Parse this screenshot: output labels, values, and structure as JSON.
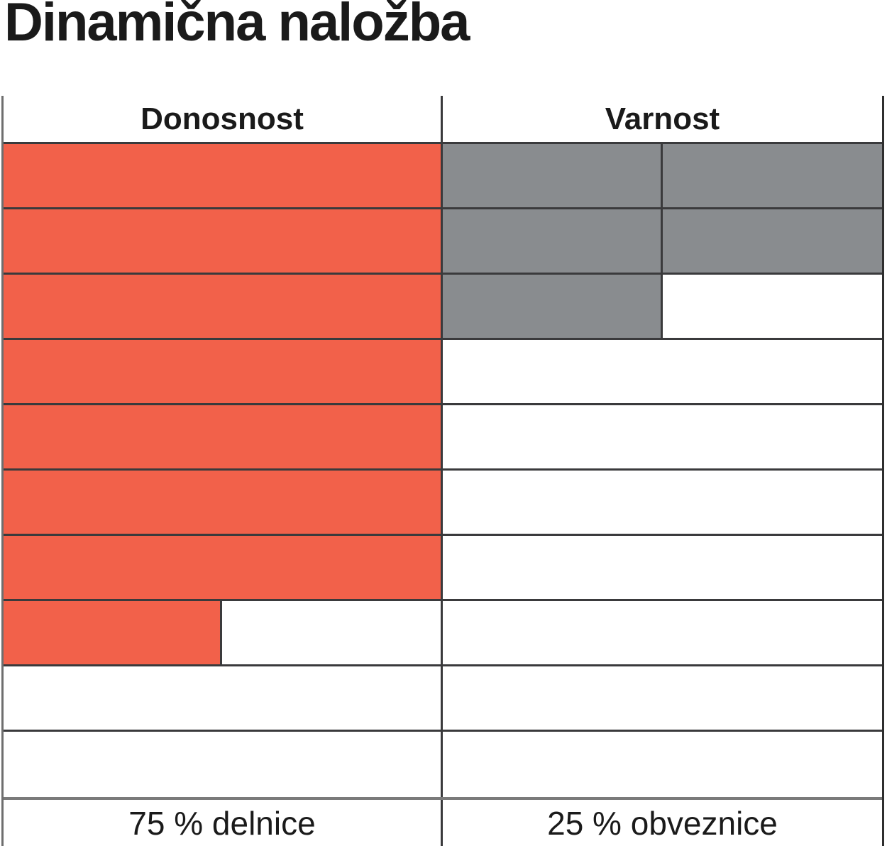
{
  "title": "Dinamična naložba",
  "chart_data": {
    "type": "table",
    "title": "Dinamična naložba",
    "columns": [
      "Donosnost",
      "Varnost"
    ],
    "scale": {
      "rows": 10,
      "max": 10,
      "fill_direction": "top-down"
    },
    "series": [
      {
        "name": "Donosnost",
        "rating": 7.5,
        "max": 10,
        "fill_color": "#F2614A",
        "block_unit": 1,
        "footer_label": "75 % delnice",
        "allocation_pct": 75
      },
      {
        "name": "Varnost",
        "rating": 2.5,
        "max": 10,
        "fill_color": "#898C8F",
        "block_unit": 0.5,
        "footer_label": "25 % obveznice",
        "allocation_pct": 25
      }
    ],
    "legend_position": "none",
    "grid": true
  },
  "colors": {
    "donosnost_fill": "#F2614A",
    "varnost_fill": "#898C8F",
    "grid_dark": "#3A3A3C",
    "grid_gray": "#7A7A7A",
    "background": "#FFFFFF",
    "text": "#1A1A1A"
  }
}
